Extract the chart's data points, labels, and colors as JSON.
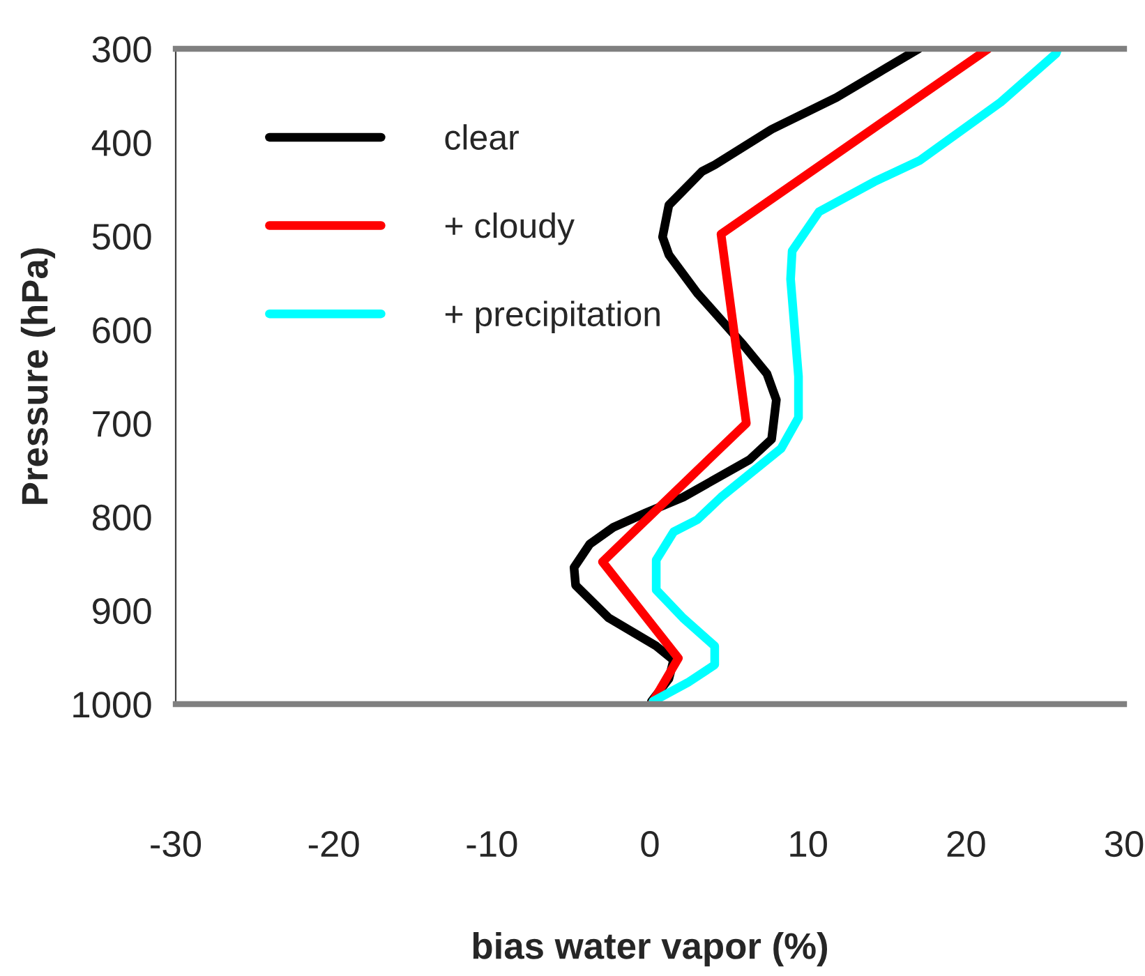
{
  "chart_data": {
    "type": "line",
    "xlabel": "bias water vapor (%)",
    "ylabel": "Pressure (hPa)",
    "xlim": [
      -30,
      30
    ],
    "xticks": [
      -30,
      -20,
      -10,
      0,
      10,
      20,
      30
    ],
    "ylim": [
      1000,
      300
    ],
    "yticks": [
      300,
      400,
      500,
      600,
      700,
      800,
      900,
      1000
    ],
    "grid": false,
    "legend": "top left",
    "marker": "none",
    "line_style": "solid",
    "series": [
      {
        "name": "clear",
        "color": "#000000",
        "x": [
          17.0,
          14.5,
          11.8,
          7.7,
          4.1,
          3.3,
          1.2,
          0.8,
          1.2,
          3.0,
          5.9,
          7.4,
          8.0,
          7.7,
          6.3,
          2.1,
          -0.3,
          -2.3,
          -3.8,
          -4.8,
          -4.7,
          -2.6,
          0.4,
          1.5,
          1.2,
          0.1
        ],
        "values": [
          300,
          325,
          352,
          386,
          424,
          431,
          467,
          501,
          520,
          561,
          616,
          647,
          675,
          717,
          739,
          779,
          796,
          811,
          829,
          854,
          873,
          908,
          938,
          953,
          973,
          997
        ]
      },
      {
        "name": "+ cloudy",
        "color": "#ff0000",
        "x": [
          21.4,
          4.5,
          6.1,
          -3.0,
          1.8,
          0.1
        ],
        "values": [
          300,
          498,
          700,
          848,
          951,
          1000
        ]
      },
      {
        "name": "+ precipitation",
        "color": "#00ffff",
        "x": [
          25.8,
          25.7,
          22.2,
          17.1,
          14.2,
          10.7,
          9.0,
          8.9,
          9.4,
          9.4,
          8.3,
          4.5,
          3.0,
          1.5,
          0.4,
          0.4,
          2.1,
          4.1,
          4.1,
          2.4,
          0.2
        ],
        "values": [
          300,
          305,
          357,
          419,
          442,
          474,
          516,
          546,
          650,
          694,
          727,
          779,
          803,
          816,
          846,
          878,
          908,
          938,
          958,
          977,
          997
        ]
      }
    ]
  }
}
